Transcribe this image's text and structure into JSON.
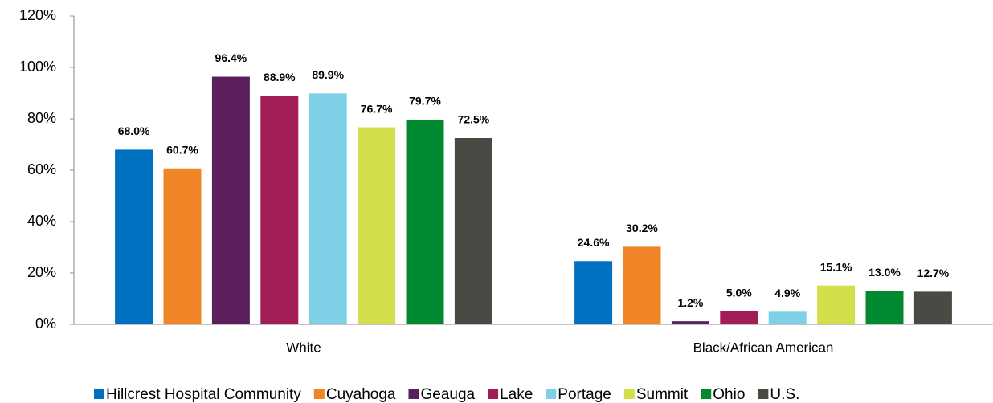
{
  "chart_data": {
    "type": "bar",
    "categories": [
      "White",
      "Black/African American"
    ],
    "series": [
      {
        "name": "Hillcrest Hospital Community",
        "color": "#0070c0",
        "values": [
          68.0,
          24.6
        ],
        "value_labels": [
          "68.0%",
          "24.6%"
        ]
      },
      {
        "name": "Cuyahoga",
        "color": "#ef8527",
        "values": [
          60.7,
          30.2
        ],
        "value_labels": [
          "60.7%",
          "30.2%"
        ]
      },
      {
        "name": "Geauga",
        "color": "#5c1f5e",
        "values": [
          96.4,
          1.2
        ],
        "value_labels": [
          "96.4%",
          "1.2%"
        ]
      },
      {
        "name": "Lake",
        "color": "#a31e57",
        "values": [
          88.9,
          5.0
        ],
        "value_labels": [
          "88.9%",
          "5.0%"
        ]
      },
      {
        "name": "Portage",
        "color": "#7dd0e6",
        "values": [
          89.9,
          4.9
        ],
        "value_labels": [
          "89.9%",
          "4.9%"
        ]
      },
      {
        "name": "Summit",
        "color": "#d4dd4a",
        "values": [
          76.7,
          15.1
        ],
        "value_labels": [
          "76.7%",
          "15.1%"
        ]
      },
      {
        "name": "Ohio",
        "color": "#00892f",
        "values": [
          79.7,
          13.0
        ],
        "value_labels": [
          "79.7%",
          "13.0%"
        ]
      },
      {
        "name": "U.S.",
        "color": "#4a4a44",
        "values": [
          72.5,
          12.7
        ],
        "value_labels": [
          "72.5%",
          "12.7%"
        ]
      }
    ],
    "ylim": [
      0,
      120
    ],
    "yticks": [
      {
        "value": 0,
        "label": "0%"
      },
      {
        "value": 20,
        "label": "20%"
      },
      {
        "value": 40,
        "label": "40%"
      },
      {
        "value": 60,
        "label": "60%"
      },
      {
        "value": 80,
        "label": "80%"
      },
      {
        "value": 100,
        "label": "100%"
      },
      {
        "value": 120,
        "label": "120%"
      }
    ],
    "grid": false,
    "legend": "bottom"
  }
}
